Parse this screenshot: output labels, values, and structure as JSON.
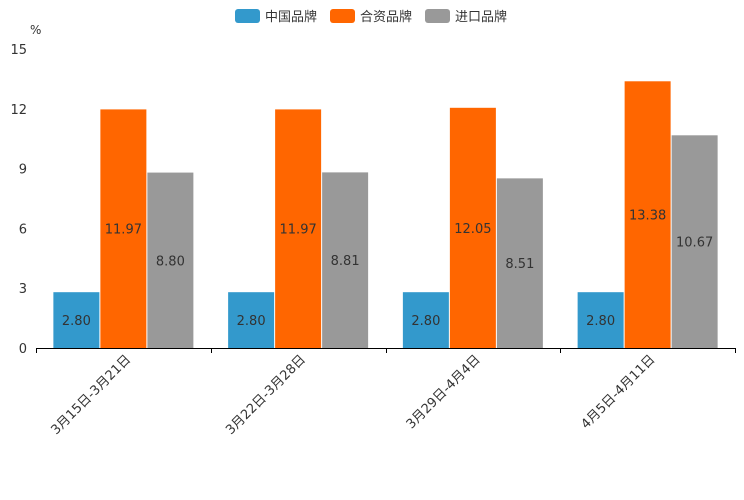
{
  "chart_data": {
    "type": "bar",
    "unit": "%",
    "categories": [
      "3月15日-3月21日",
      "3月22日-3月28日",
      "3月29日-4月4日",
      "4月5日-4月11日"
    ],
    "series": [
      {
        "name": "中国品牌",
        "color": "#3399cc",
        "values": [
          2.8,
          2.8,
          2.8,
          2.8
        ],
        "labels": [
          "2.80",
          "2.80",
          "2.80",
          "2.80"
        ]
      },
      {
        "name": "合资品牌",
        "color": "#ff6600",
        "values": [
          11.97,
          11.97,
          12.05,
          13.38
        ],
        "labels": [
          "11.97",
          "11.97",
          "12.05",
          "13.38"
        ]
      },
      {
        "name": "进口品牌",
        "color": "#999999",
        "values": [
          8.8,
          8.81,
          8.51,
          10.67
        ],
        "labels": [
          "8.80",
          "8.81",
          "8.51",
          "10.67"
        ]
      }
    ],
    "ylim": [
      0,
      15
    ],
    "yticks": [
      "0",
      "3",
      "6",
      "9",
      "12",
      "15"
    ],
    "legend_position": "top-center"
  }
}
